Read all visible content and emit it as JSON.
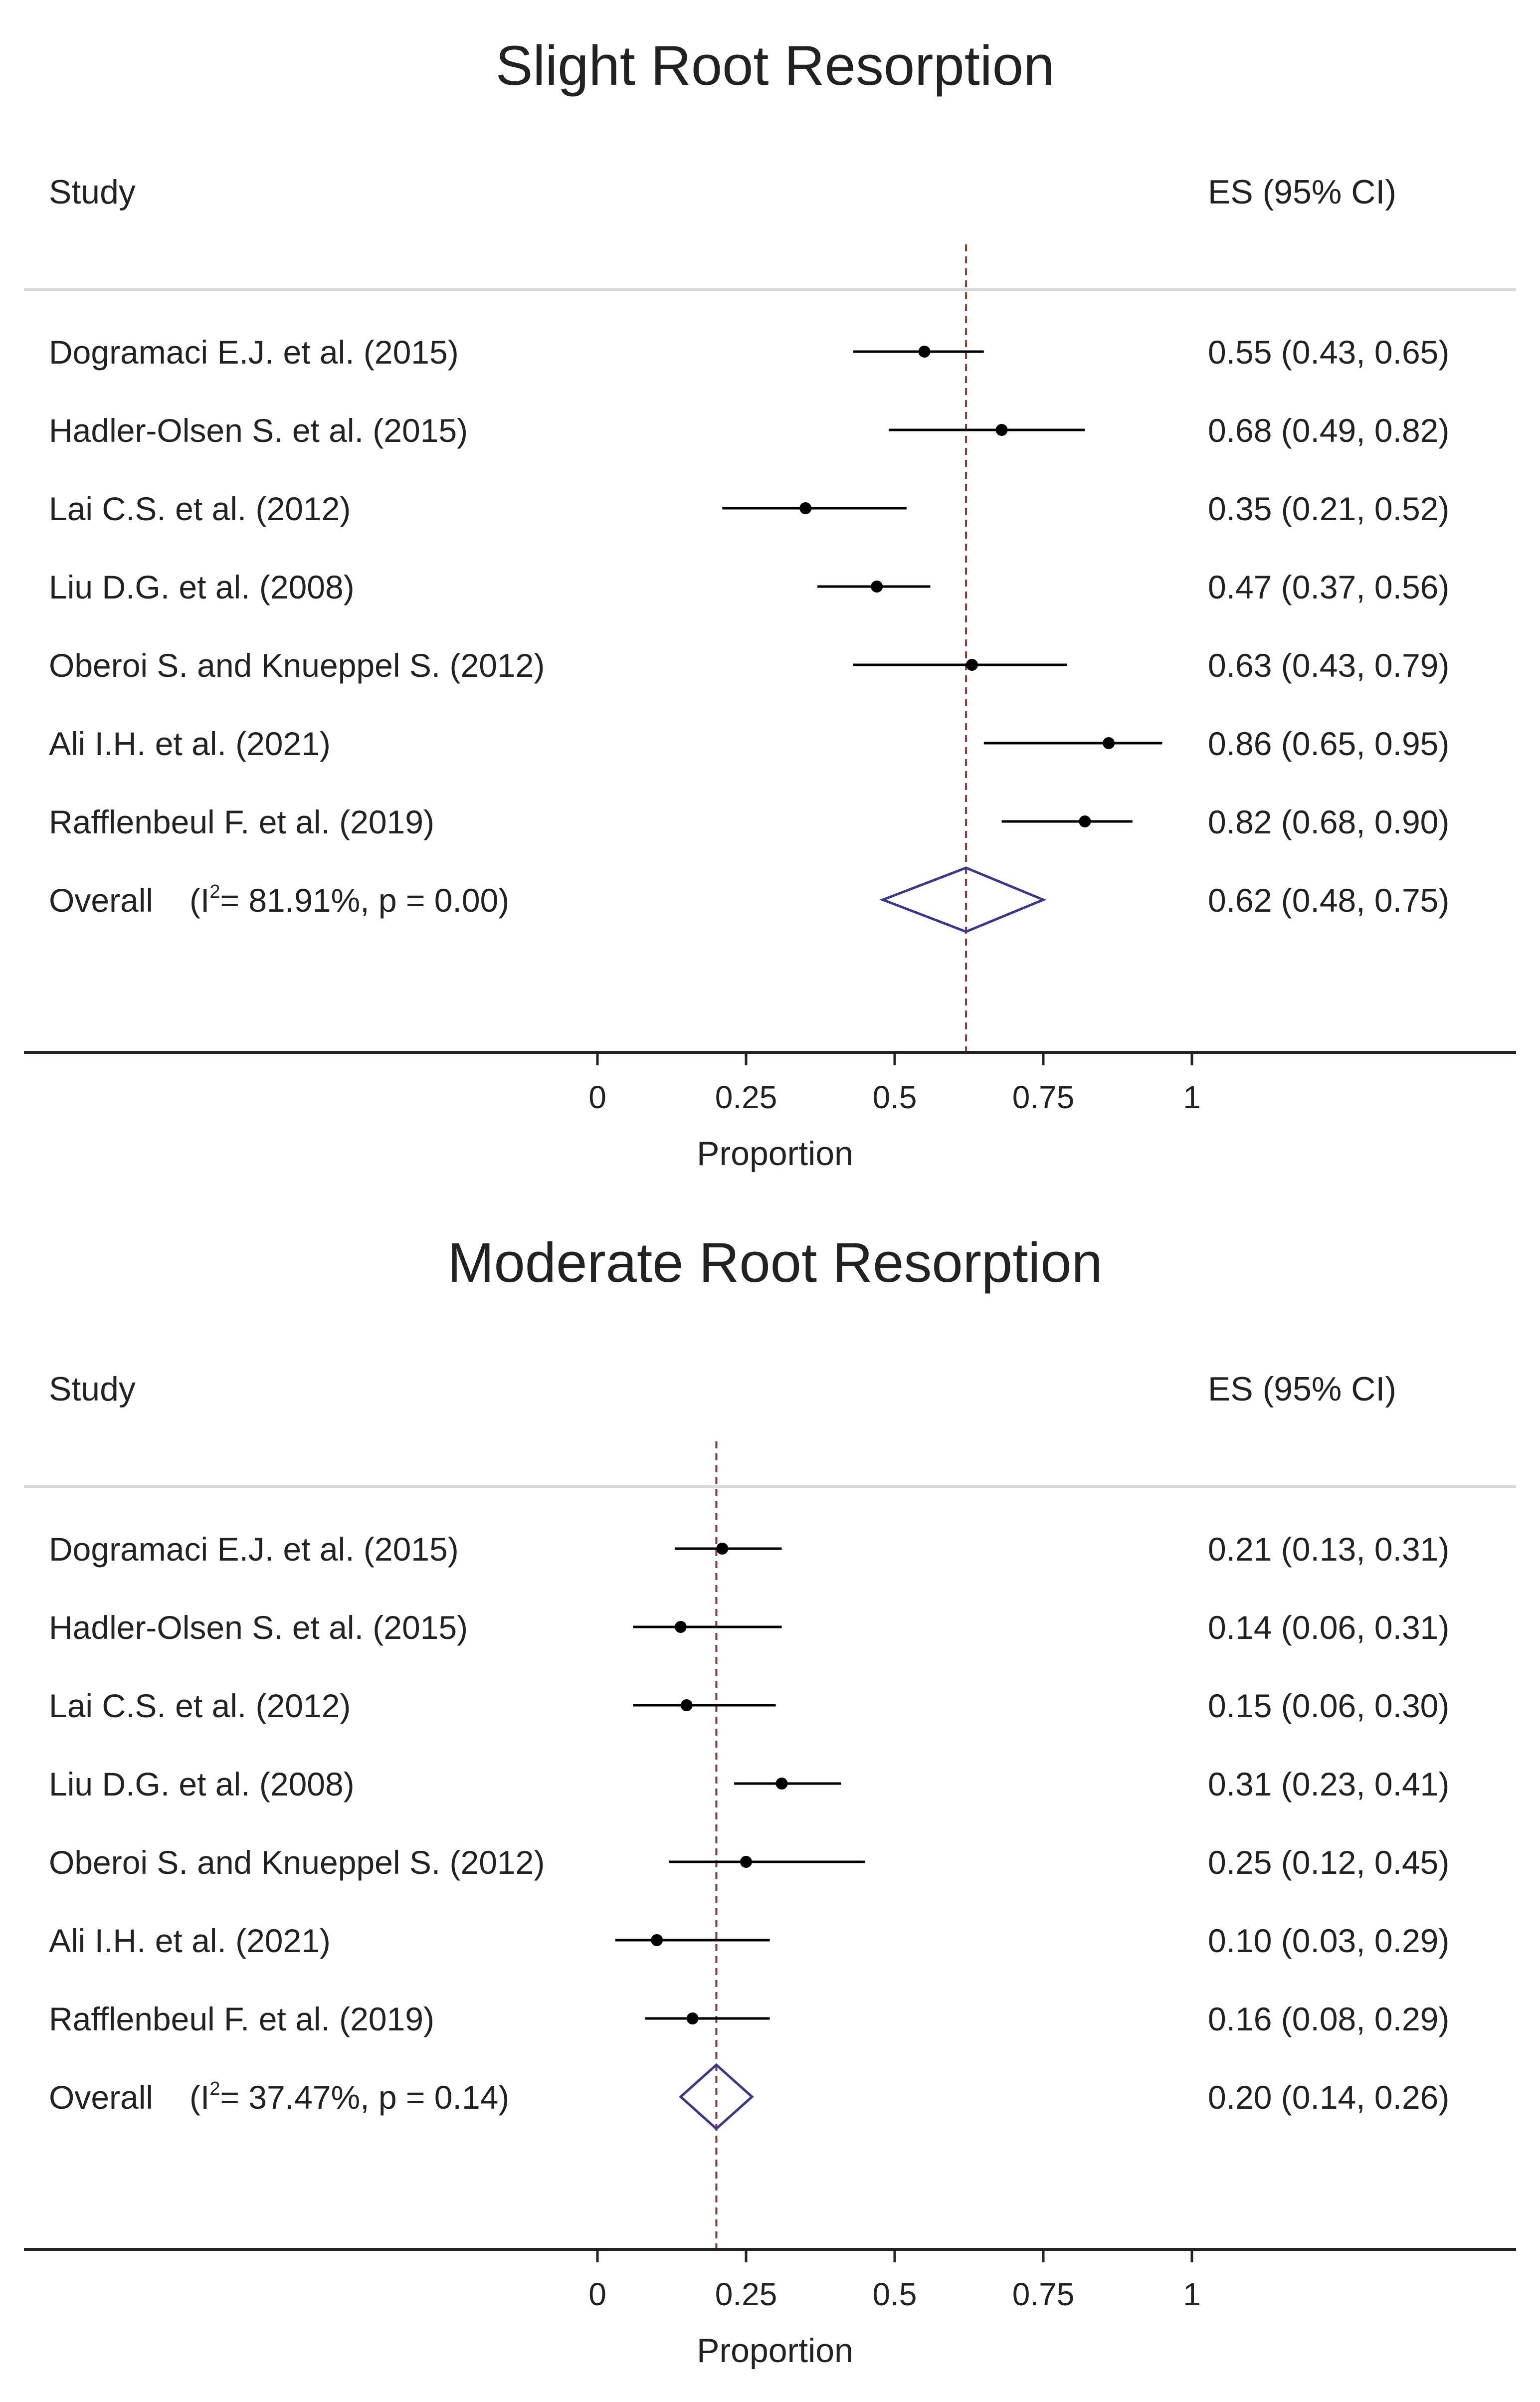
{
  "chart_data": [
    {
      "type": "forest",
      "title": "Slight Root Resorption",
      "col_study": "Study",
      "col_es": "ES (95% CI)",
      "xlabel": "Proportion",
      "xlim": [
        0,
        1
      ],
      "ticks": [
        0,
        0.25,
        0.5,
        0.75,
        1
      ],
      "tick_labels": [
        "0",
        "0.25",
        "0.5",
        "0.75",
        "1"
      ],
      "reference_line": 0.62,
      "studies": [
        {
          "name": "Dogramaci E.J. et al. (2015)",
          "es": 0.55,
          "lo": 0.43,
          "hi": 0.65,
          "label": "0.55 (0.43, 0.65)"
        },
        {
          "name": "Hadler-Olsen S. et al. (2015)",
          "es": 0.68,
          "lo": 0.49,
          "hi": 0.82,
          "label": "0.68 (0.49, 0.82)"
        },
        {
          "name": "Lai C.S. et al. (2012)",
          "es": 0.35,
          "lo": 0.21,
          "hi": 0.52,
          "label": "0.35 (0.21, 0.52)"
        },
        {
          "name": "Liu D.G. et al. (2008)",
          "es": 0.47,
          "lo": 0.37,
          "hi": 0.56,
          "label": "0.47 (0.37, 0.56)"
        },
        {
          "name": "Oberoi S. and Knueppel S. (2012)",
          "es": 0.63,
          "lo": 0.43,
          "hi": 0.79,
          "label": "0.63 (0.43, 0.79)"
        },
        {
          "name": "Ali I.H. et al. (2021)",
          "es": 0.86,
          "lo": 0.65,
          "hi": 0.95,
          "label": "0.86 (0.65, 0.95)"
        },
        {
          "name": "Rafflenbeul F. et al. (2019)",
          "es": 0.82,
          "lo": 0.68,
          "hi": 0.9,
          "label": "0.82 (0.68, 0.90)"
        }
      ],
      "overall": {
        "name": "Overall",
        "het_prefix": "(I",
        "het_sup": "2",
        "het_suffix": "= 81.91%, p = 0.00)",
        "es": 0.62,
        "lo": 0.48,
        "hi": 0.75,
        "label": "0.62 (0.48, 0.75)"
      },
      "colors": {
        "ci": "#000000",
        "diamond": "#3a3a8c",
        "reference": "#8b3a3a",
        "rule": "#d9d9d9"
      }
    },
    {
      "type": "forest",
      "title": "Moderate Root Resorption",
      "col_study": "Study",
      "col_es": "ES (95% CI)",
      "xlabel": "Proportion",
      "xlim": [
        0,
        1
      ],
      "ticks": [
        0,
        0.25,
        0.5,
        0.75,
        1
      ],
      "tick_labels": [
        "0",
        "0.25",
        "0.5",
        "0.75",
        "1"
      ],
      "reference_line": 0.2,
      "studies": [
        {
          "name": "Dogramaci E.J. et al. (2015)",
          "es": 0.21,
          "lo": 0.13,
          "hi": 0.31,
          "label": "0.21 (0.13, 0.31)"
        },
        {
          "name": "Hadler-Olsen S. et al. (2015)",
          "es": 0.14,
          "lo": 0.06,
          "hi": 0.31,
          "label": "0.14 (0.06, 0.31)"
        },
        {
          "name": "Lai C.S. et al. (2012)",
          "es": 0.15,
          "lo": 0.06,
          "hi": 0.3,
          "label": "0.15 (0.06, 0.30)"
        },
        {
          "name": "Liu D.G. et al. (2008)",
          "es": 0.31,
          "lo": 0.23,
          "hi": 0.41,
          "label": "0.31 (0.23, 0.41)"
        },
        {
          "name": "Oberoi S. and Knueppel S. (2012)",
          "es": 0.25,
          "lo": 0.12,
          "hi": 0.45,
          "label": "0.25 (0.12, 0.45)"
        },
        {
          "name": "Ali I.H. et al. (2021)",
          "es": 0.1,
          "lo": 0.03,
          "hi": 0.29,
          "label": "0.10 (0.03, 0.29)"
        },
        {
          "name": "Rafflenbeul F. et al. (2019)",
          "es": 0.16,
          "lo": 0.08,
          "hi": 0.29,
          "label": "0.16 (0.08, 0.29)"
        }
      ],
      "overall": {
        "name": "Overall",
        "het_prefix": "(I",
        "het_sup": "2",
        "het_suffix": "= 37.47%, p = 0.14)",
        "es": 0.2,
        "lo": 0.14,
        "hi": 0.26,
        "label": "0.20 (0.14, 0.26)"
      },
      "colors": {
        "ci": "#000000",
        "diamond": "#3a3a8c",
        "reference": "#8b3a3a",
        "rule": "#d9d9d9"
      }
    }
  ]
}
